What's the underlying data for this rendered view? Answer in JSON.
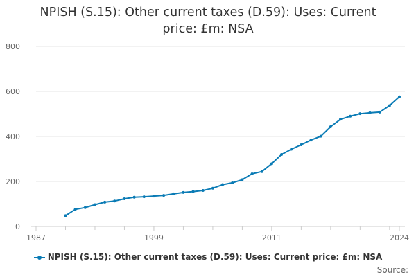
{
  "chart_data": {
    "type": "line",
    "title_line1": "NPISH (S.15): Other current taxes (D.59): Uses: Current",
    "title_line2": "price: £m: NSA",
    "xlabel": "",
    "ylabel": "",
    "xlim": [
      1987,
      2024
    ],
    "ylim": [
      0,
      800
    ],
    "x_ticks": [
      "1987",
      "1999",
      "2011",
      "2024"
    ],
    "y_ticks": [
      "0",
      "200",
      "400",
      "600",
      "800"
    ],
    "grid": true,
    "legend_position": "bottom",
    "series": [
      {
        "name": "NPISH (S.15): Other current taxes (D.59): Uses: Current price: £m: NSA",
        "color": "#0a7bb5",
        "x": [
          1990,
          1991,
          1992,
          1993,
          1994,
          1995,
          1996,
          1997,
          1998,
          1999,
          2000,
          2001,
          2002,
          2003,
          2004,
          2005,
          2006,
          2007,
          2008,
          2009,
          2010,
          2011,
          2012,
          2013,
          2014,
          2015,
          2016,
          2017,
          2018,
          2019,
          2020,
          2021,
          2022,
          2023,
          2024
        ],
        "values": [
          48,
          76,
          84,
          97,
          108,
          113,
          123,
          130,
          132,
          135,
          138,
          145,
          151,
          155,
          160,
          170,
          186,
          194,
          208,
          234,
          244,
          279,
          320,
          343,
          363,
          384,
          401,
          443,
          476,
          490,
          501,
          505,
          508,
          537,
          576
        ]
      }
    ],
    "source_label": "Source:"
  }
}
